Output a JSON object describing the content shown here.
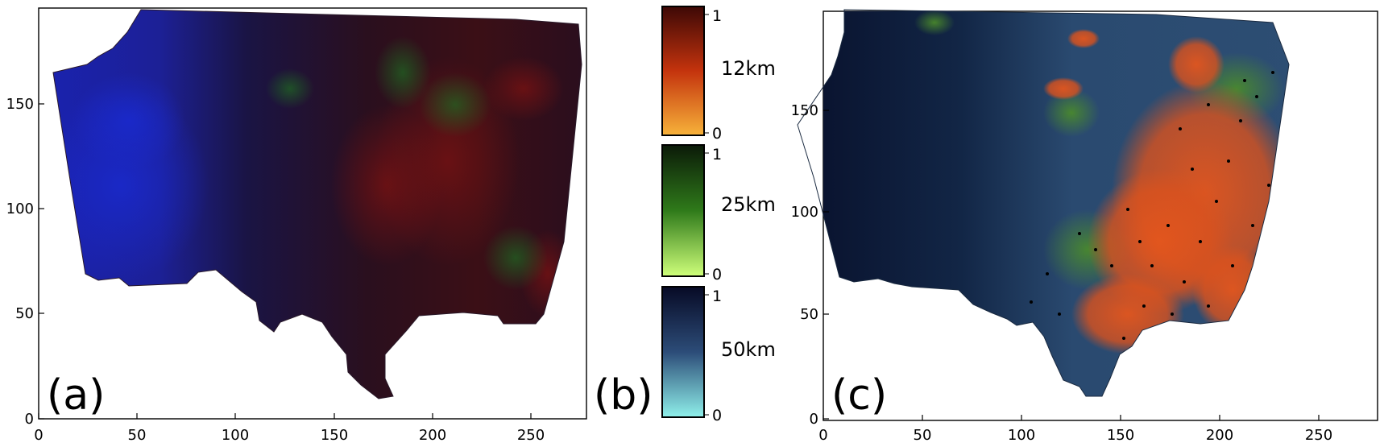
{
  "panel_a": {
    "label": "(a)",
    "x_ticks": [
      "0",
      "50",
      "100",
      "150",
      "200",
      "250"
    ],
    "y_ticks": [
      "0",
      "50",
      "100",
      "150"
    ]
  },
  "panel_b": {
    "label": "(b)",
    "colorbars": [
      {
        "name": "12km",
        "max_label": "1",
        "min_label": "0",
        "color_top": "#3d0806",
        "color_mid": "#c4330d",
        "color_bottom": "#f7b23a"
      },
      {
        "name": "25km",
        "max_label": "1",
        "min_label": "0",
        "color_top": "#0b1a08",
        "color_mid": "#2f7a1a",
        "color_bottom": "#cfff7a"
      },
      {
        "name": "50km",
        "max_label": "1",
        "min_label": "0",
        "color_top": "#070a25",
        "color_mid": "#2c4c78",
        "color_bottom": "#8ff0ea"
      }
    ]
  },
  "panel_c": {
    "label": "(c)",
    "x_ticks": [
      "0",
      "50",
      "100",
      "150",
      "200",
      "250"
    ],
    "y_ticks": [
      "0",
      "50",
      "100",
      "150"
    ]
  },
  "colors": {
    "map_a_blue": "#1a1fa0",
    "map_a_dark": "#1a1024",
    "map_a_red": "#6a0f12",
    "map_a_green": "#1f4a1c",
    "map_c_navy": "#0c1a34",
    "map_c_slate": "#2f4f74",
    "map_c_orange": "#e0571f",
    "map_c_green": "#4a8a2a"
  }
}
